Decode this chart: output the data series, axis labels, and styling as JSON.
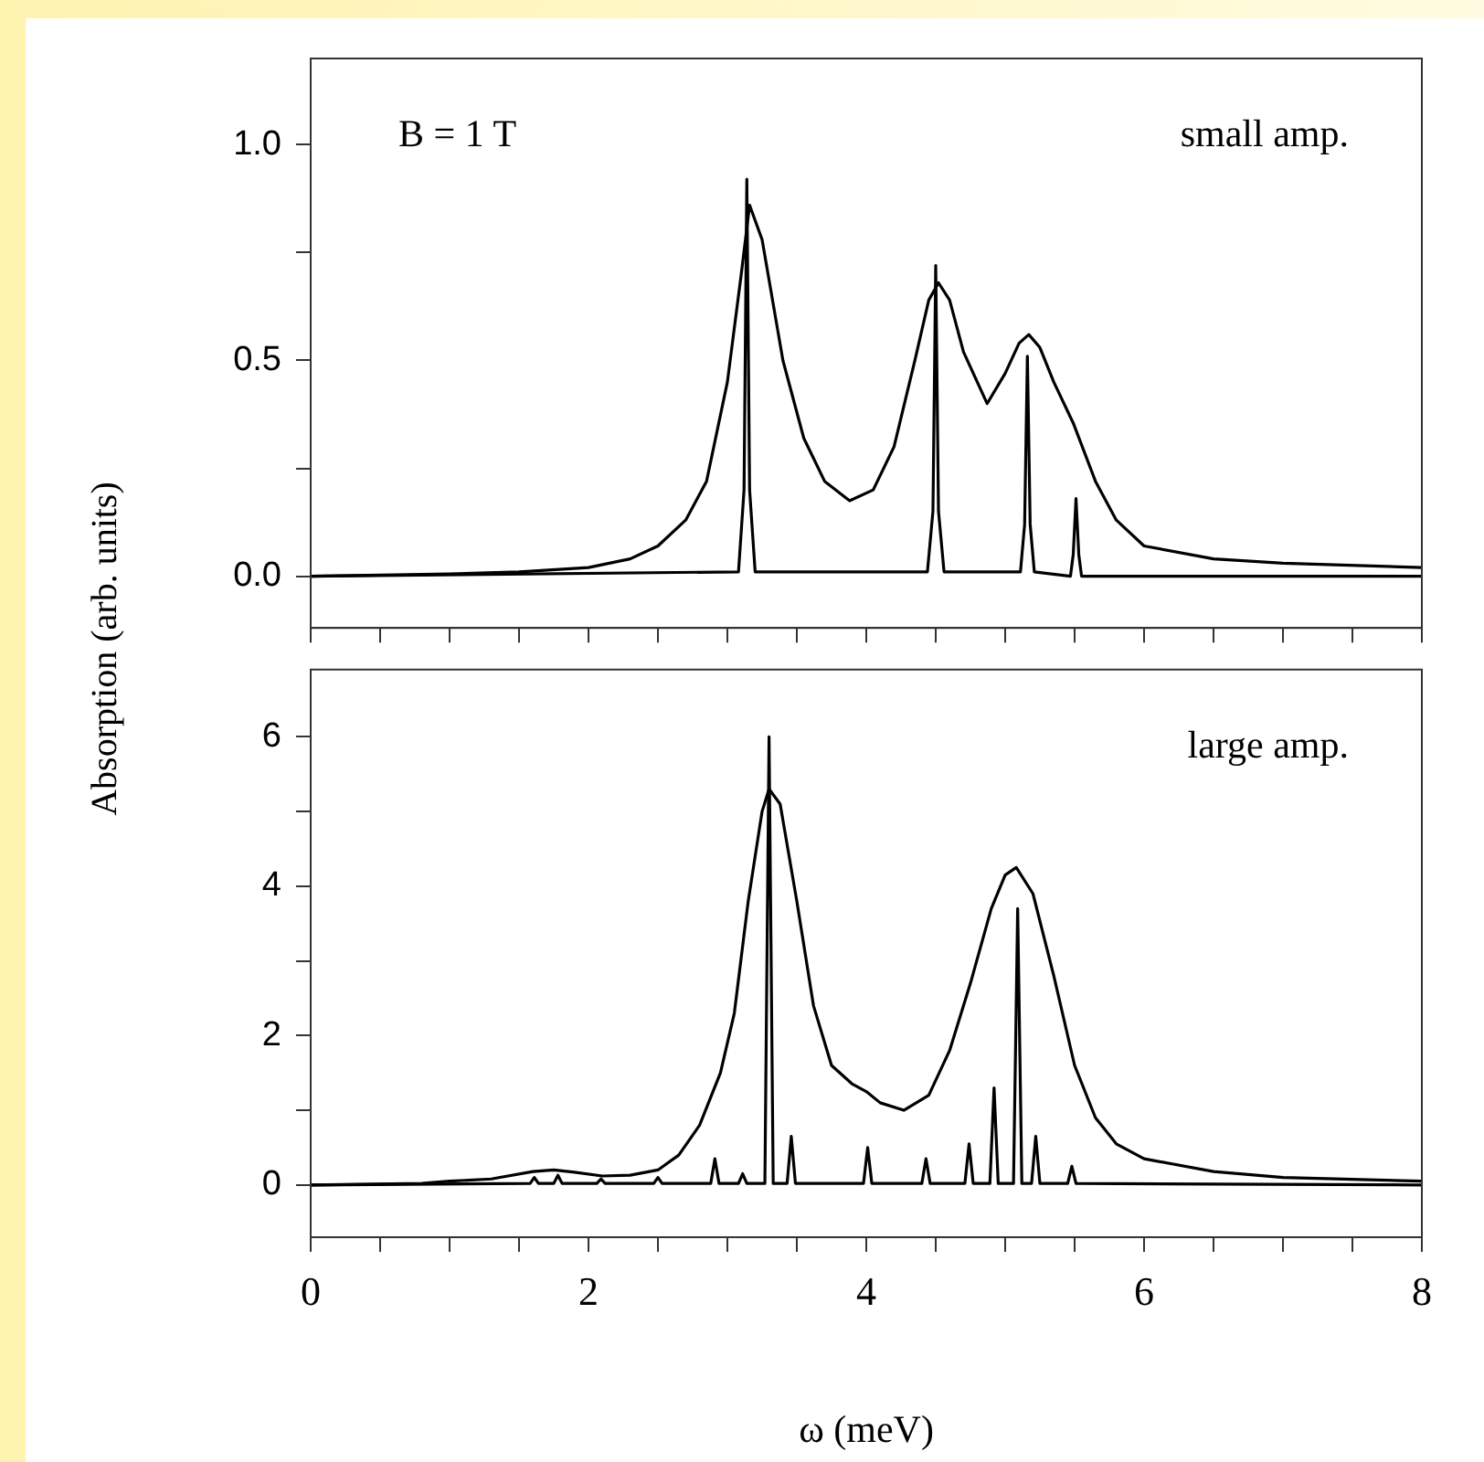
{
  "chart_data": [
    {
      "type": "line",
      "ylabel": "Absorption (arb. units)",
      "annotations": [
        "B = 1 T",
        "small amp."
      ],
      "xlim": [
        0,
        8
      ],
      "xticks": [
        0,
        {
          "value": 0.5,
          "label": null
        },
        {
          "value": 1,
          "label": null
        },
        {
          "value": 1.5,
          "label": null
        },
        {
          "value": 2,
          "label": null
        },
        {
          "value": 2.5,
          "label": null
        },
        {
          "value": 3,
          "label": null
        },
        {
          "value": 3.5,
          "label": null
        },
        {
          "value": 4,
          "label": null
        },
        {
          "value": 4.5,
          "label": null
        },
        {
          "value": 5,
          "label": null
        },
        {
          "value": 5.5,
          "label": null
        },
        {
          "value": 6,
          "label": null
        },
        {
          "value": 6.5,
          "label": null
        },
        {
          "value": 7,
          "label": null
        },
        {
          "value": 7.5,
          "label": null
        },
        {
          "value": 8,
          "label": null
        }
      ],
      "ylim": [
        -0.12,
        1.2
      ],
      "yticks": [
        {
          "value": 0,
          "label": "0.0"
        },
        {
          "value": 0.25,
          "label": null
        },
        0.5,
        {
          "value": 0.75,
          "label": null
        },
        {
          "value": 1,
          "label": "1.0"
        }
      ],
      "tick_labels": "y",
      "legend": false,
      "marker": "none",
      "line_style": "solid",
      "series": [
        {
          "color": "#000000",
          "x": [
            0,
            1,
            1.5,
            2,
            2.3,
            2.5,
            2.7,
            2.85,
            3.0,
            3.1,
            3.16,
            3.25,
            3.4,
            3.55,
            3.7,
            3.88,
            4.05,
            4.2,
            4.35,
            4.45,
            4.52,
            4.6,
            4.7,
            4.87,
            5.0,
            5.1,
            5.17,
            5.25,
            5.35,
            5.49,
            5.65,
            5.8,
            6.0,
            6.5,
            7,
            8
          ],
          "values": [
            0,
            0.005,
            0.01,
            0.02,
            0.04,
            0.07,
            0.13,
            0.22,
            0.45,
            0.7,
            0.86,
            0.78,
            0.5,
            0.32,
            0.22,
            0.175,
            0.2,
            0.3,
            0.5,
            0.64,
            0.68,
            0.64,
            0.52,
            0.4,
            0.47,
            0.54,
            0.56,
            0.53,
            0.45,
            0.355,
            0.22,
            0.13,
            0.07,
            0.04,
            0.03,
            0.02
          ]
        },
        {
          "color": "#000000",
          "x": [
            0,
            3.08,
            3.12,
            3.14,
            3.16,
            3.2,
            4.44,
            4.48,
            4.5,
            4.52,
            4.56,
            5.11,
            5.14,
            5.16,
            5.18,
            5.21,
            5.47,
            5.49,
            5.51,
            5.53,
            5.55,
            8
          ],
          "values": [
            0,
            0.01,
            0.2,
            0.92,
            0.2,
            0.01,
            0.01,
            0.15,
            0.72,
            0.15,
            0.01,
            0.01,
            0.12,
            0.51,
            0.12,
            0.01,
            0,
            0.05,
            0.18,
            0.05,
            0,
            0
          ]
        }
      ]
    },
    {
      "type": "line",
      "xlabel": "ω (meV)",
      "annotations": [
        "large amp."
      ],
      "xlim": [
        0,
        8
      ],
      "xticks": [
        0,
        {
          "value": 0.5,
          "label": null
        },
        {
          "value": 1,
          "label": null
        },
        {
          "value": 1.5,
          "label": null
        },
        2,
        {
          "value": 2.5,
          "label": null
        },
        {
          "value": 3,
          "label": null
        },
        {
          "value": 3.5,
          "label": null
        },
        4,
        {
          "value": 4.5,
          "label": null
        },
        {
          "value": 5,
          "label": null
        },
        {
          "value": 5.5,
          "label": null
        },
        6,
        {
          "value": 6.5,
          "label": null
        },
        {
          "value": 7,
          "label": null
        },
        {
          "value": 7.5,
          "label": null
        },
        8
      ],
      "ylim": [
        -0.7,
        6.9
      ],
      "yticks": [
        0,
        {
          "value": 1,
          "label": null
        },
        2,
        {
          "value": 3,
          "label": null
        },
        4,
        {
          "value": 5,
          "label": null
        },
        6
      ],
      "legend": false,
      "marker": "none",
      "line_style": "solid",
      "series": [
        {
          "color": "#000000",
          "x": [
            0,
            0.8,
            1.0,
            1.3,
            1.6,
            1.75,
            1.9,
            2.1,
            2.3,
            2.5,
            2.65,
            2.8,
            2.95,
            3.05,
            3.15,
            3.25,
            3.3,
            3.38,
            3.5,
            3.62,
            3.75,
            3.9,
            4.0,
            4.1,
            4.27,
            4.45,
            4.6,
            4.75,
            4.9,
            5.0,
            5.08,
            5.2,
            5.35,
            5.5,
            5.65,
            5.8,
            6.0,
            6.5,
            7,
            8
          ],
          "values": [
            0,
            0.02,
            0.05,
            0.08,
            0.18,
            0.2,
            0.17,
            0.12,
            0.13,
            0.2,
            0.4,
            0.8,
            1.5,
            2.3,
            3.8,
            5.0,
            5.3,
            5.1,
            3.8,
            2.4,
            1.6,
            1.35,
            1.25,
            1.1,
            1.0,
            1.2,
            1.8,
            2.7,
            3.7,
            4.15,
            4.25,
            3.9,
            2.8,
            1.6,
            0.9,
            0.55,
            0.35,
            0.18,
            0.1,
            0.05
          ]
        },
        {
          "color": "#000000",
          "x": [
            0,
            1.58,
            1.61,
            1.64,
            1.75,
            1.78,
            1.81,
            2.06,
            2.09,
            2.12,
            2.47,
            2.5,
            2.53,
            2.88,
            2.91,
            2.94,
            3.08,
            3.11,
            3.14,
            3.27,
            3.3,
            3.33,
            3.43,
            3.46,
            3.49,
            3.98,
            4.01,
            4.04,
            4.4,
            4.43,
            4.46,
            4.71,
            4.74,
            4.77,
            4.89,
            4.92,
            4.95,
            5.06,
            5.09,
            5.12,
            5.19,
            5.22,
            5.25,
            5.45,
            5.48,
            5.51,
            8
          ],
          "values": [
            0,
            0.02,
            0.1,
            0.02,
            0.02,
            0.13,
            0.02,
            0.02,
            0.08,
            0.02,
            0.02,
            0.1,
            0.02,
            0.02,
            0.35,
            0.02,
            0.02,
            0.15,
            0.02,
            0.02,
            6.0,
            0.02,
            0.02,
            0.65,
            0.02,
            0.02,
            0.5,
            0.02,
            0.02,
            0.35,
            0.02,
            0.02,
            0.55,
            0.02,
            0.02,
            1.3,
            0.02,
            0.02,
            3.7,
            0.02,
            0.02,
            0.65,
            0.02,
            0.02,
            0.25,
            0.02,
            0
          ]
        }
      ]
    }
  ]
}
